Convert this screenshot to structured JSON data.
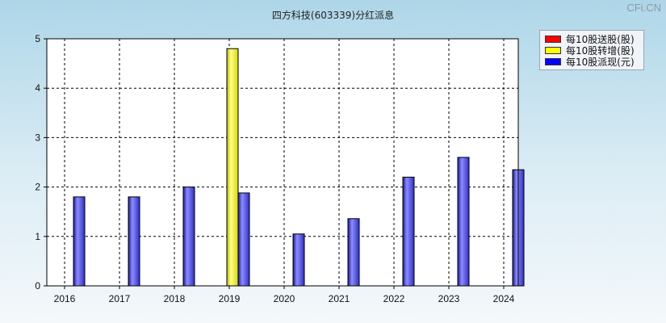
{
  "watermark": "CFi.CN",
  "chart_data": {
    "type": "bar",
    "title": "四方科技(603339)分红派息",
    "categories": [
      "2016",
      "2017",
      "2018",
      "2019",
      "2020",
      "2021",
      "2022",
      "2023",
      "2024"
    ],
    "ylim": [
      0,
      5
    ],
    "yticks": [
      "0",
      "1",
      "2",
      "3",
      "4",
      "5"
    ],
    "grid": true,
    "legend_position": "top-right",
    "series": [
      {
        "name": "每10股送股(股)",
        "color": "#ff0000",
        "values": [
          0,
          0,
          0,
          0,
          0,
          0,
          0,
          0,
          0
        ]
      },
      {
        "name": "每10股转增(股)",
        "color": "#ffff00",
        "values": [
          0,
          0,
          0,
          4.8,
          0,
          0,
          0,
          0,
          0
        ]
      },
      {
        "name": "每10股派现(元)",
        "color": "#0000ff",
        "values": [
          1.8,
          1.8,
          2.0,
          1.88,
          1.05,
          1.36,
          2.2,
          2.6,
          2.35
        ]
      }
    ]
  }
}
